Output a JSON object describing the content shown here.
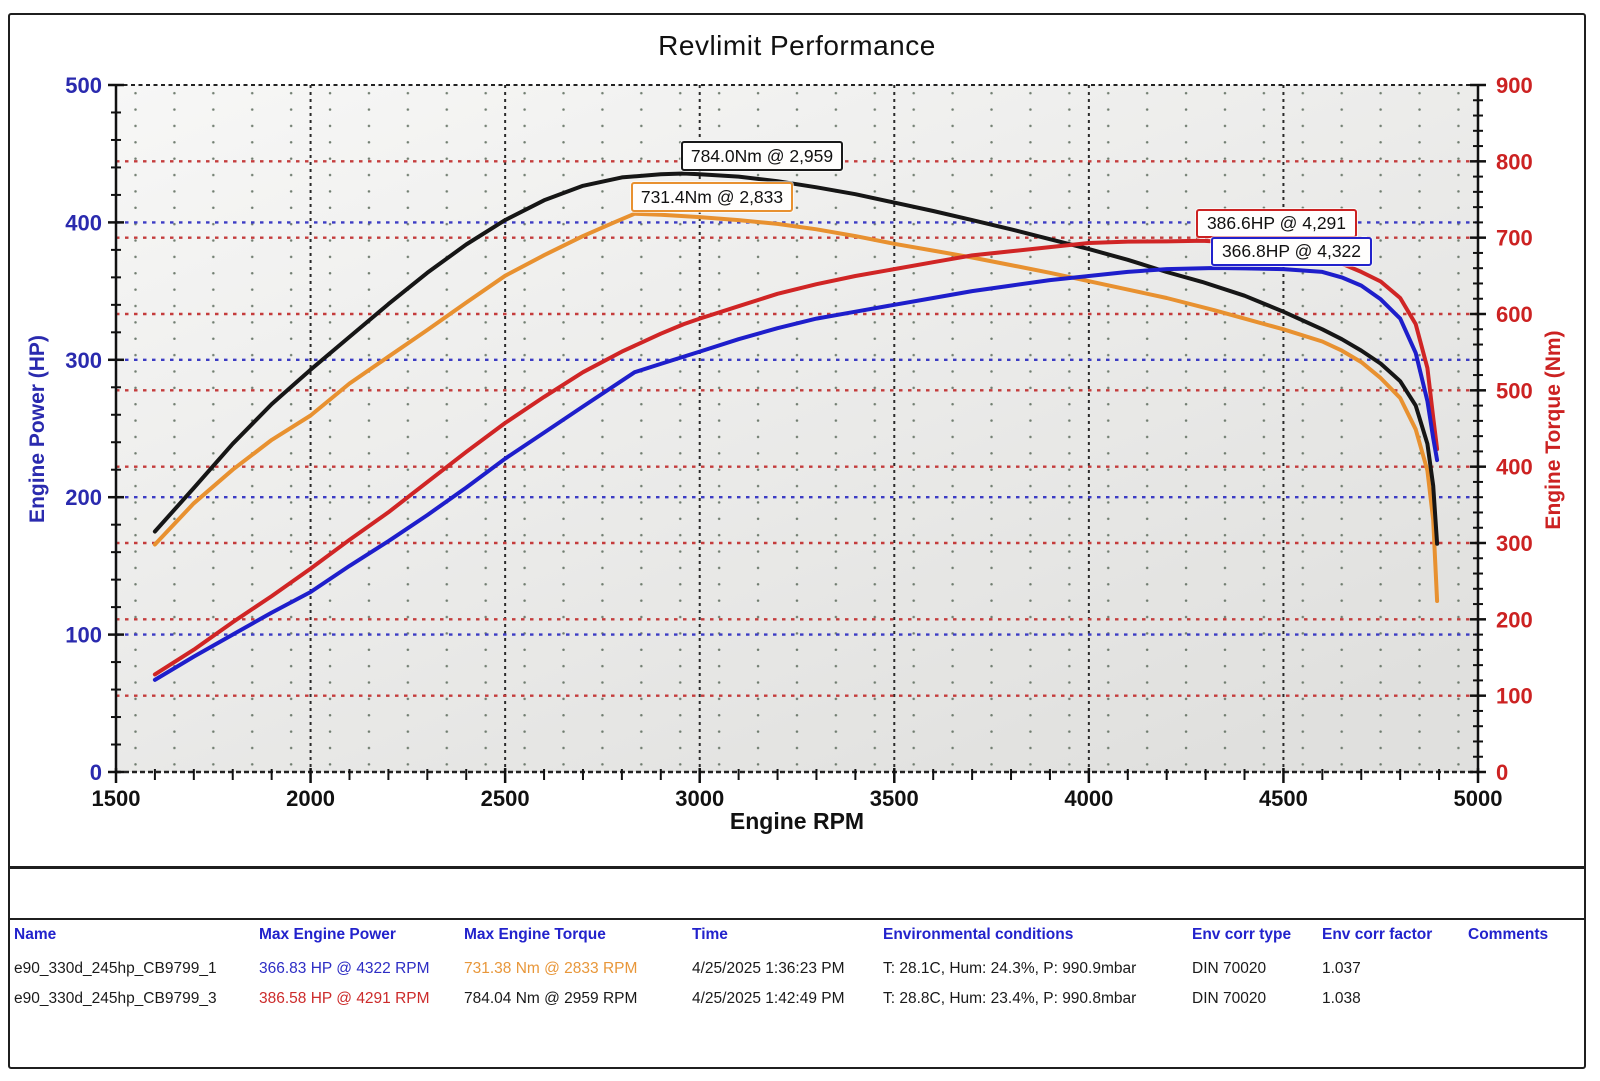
{
  "chart_data": {
    "type": "line",
    "title": "Revlimit Performance",
    "xlabel": "Engine RPM",
    "ylabel_left": "Engine Power (HP)",
    "ylabel_right": "Engine Torque (Nm)",
    "x_range": [
      1500,
      5000
    ],
    "x_ticks": [
      1500,
      2000,
      2500,
      3000,
      3500,
      4000,
      4500,
      5000
    ],
    "y_left_range": [
      0,
      500
    ],
    "y_left_ticks": [
      0,
      100,
      200,
      300,
      400,
      500
    ],
    "y_right_range": [
      0,
      900
    ],
    "y_right_ticks": [
      0,
      100,
      200,
      300,
      400,
      500,
      600,
      700,
      800,
      900
    ],
    "grid": {
      "x_major": [
        2000,
        2500,
        3000,
        3500,
        4000,
        4500
      ],
      "y_left_major": [
        100,
        200,
        300,
        400
      ],
      "y_right_major": [
        100,
        200,
        300,
        400,
        500,
        600,
        700,
        800
      ],
      "x_major_color": "#2b2b2b",
      "y_left_color": "#3c3cc4",
      "y_right_color": "#c43c3c",
      "minor_dot_color": "#5a6a5a"
    },
    "legend_position": "none",
    "series": [
      {
        "id": "torque-run1",
        "name": "e90_330d_245hp_CB9799_1 Torque",
        "axis": "right",
        "color": "#e89130",
        "points": [
          [
            1600,
            298
          ],
          [
            1700,
            352
          ],
          [
            1800,
            396
          ],
          [
            1900,
            435
          ],
          [
            2000,
            467
          ],
          [
            2100,
            509
          ],
          [
            2200,
            544
          ],
          [
            2300,
            579
          ],
          [
            2400,
            615
          ],
          [
            2500,
            650
          ],
          [
            2600,
            677
          ],
          [
            2700,
            702
          ],
          [
            2780,
            720
          ],
          [
            2833,
            731.4
          ],
          [
            2900,
            730
          ],
          [
            3000,
            727
          ],
          [
            3100,
            723
          ],
          [
            3200,
            718
          ],
          [
            3300,
            711
          ],
          [
            3400,
            702
          ],
          [
            3500,
            692
          ],
          [
            3600,
            683
          ],
          [
            3700,
            674
          ],
          [
            3800,
            664
          ],
          [
            3900,
            654
          ],
          [
            4000,
            643
          ],
          [
            4100,
            632
          ],
          [
            4200,
            621
          ],
          [
            4322,
            605
          ],
          [
            4400,
            594
          ],
          [
            4500,
            580
          ],
          [
            4600,
            564
          ],
          [
            4650,
            552
          ],
          [
            4700,
            537
          ],
          [
            4750,
            516
          ],
          [
            4800,
            490
          ],
          [
            4840,
            449
          ],
          [
            4870,
            395
          ],
          [
            4885,
            330
          ],
          [
            4895,
            224
          ]
        ]
      },
      {
        "id": "torque-run3",
        "name": "e90_330d_245hp_CB9799_3 Torque",
        "axis": "right",
        "color": "#161616",
        "points": [
          [
            1600,
            315
          ],
          [
            1700,
            372
          ],
          [
            1800,
            430
          ],
          [
            1900,
            482
          ],
          [
            2000,
            527
          ],
          [
            2100,
            570
          ],
          [
            2200,
            613
          ],
          [
            2300,
            654
          ],
          [
            2400,
            691
          ],
          [
            2500,
            723
          ],
          [
            2600,
            749
          ],
          [
            2700,
            768
          ],
          [
            2800,
            779
          ],
          [
            2900,
            783
          ],
          [
            2959,
            784
          ],
          [
            3000,
            783
          ],
          [
            3100,
            780
          ],
          [
            3200,
            774
          ],
          [
            3300,
            766
          ],
          [
            3400,
            757
          ],
          [
            3500,
            746
          ],
          [
            3600,
            735
          ],
          [
            3700,
            723
          ],
          [
            3800,
            711
          ],
          [
            3900,
            698
          ],
          [
            4000,
            685
          ],
          [
            4100,
            671
          ],
          [
            4200,
            655
          ],
          [
            4291,
            642
          ],
          [
            4400,
            624
          ],
          [
            4500,
            603
          ],
          [
            4600,
            580
          ],
          [
            4650,
            567
          ],
          [
            4700,
            552
          ],
          [
            4750,
            535
          ],
          [
            4800,
            512
          ],
          [
            4840,
            480
          ],
          [
            4870,
            430
          ],
          [
            4885,
            375
          ],
          [
            4895,
            299
          ]
        ]
      },
      {
        "id": "power-run3",
        "name": "e90_330d_245hp_CB9799_3 Power",
        "axis": "left",
        "color": "#d02525",
        "points": [
          [
            1600,
            71
          ],
          [
            1700,
            89
          ],
          [
            1800,
            109
          ],
          [
            1900,
            128
          ],
          [
            2000,
            148
          ],
          [
            2100,
            169
          ],
          [
            2200,
            189
          ],
          [
            2300,
            211
          ],
          [
            2400,
            233
          ],
          [
            2500,
            254
          ],
          [
            2600,
            273
          ],
          [
            2700,
            291
          ],
          [
            2800,
            306
          ],
          [
            2900,
            319
          ],
          [
            2959,
            326
          ],
          [
            3000,
            330
          ],
          [
            3100,
            339
          ],
          [
            3200,
            348
          ],
          [
            3300,
            355
          ],
          [
            3400,
            361
          ],
          [
            3500,
            366
          ],
          [
            3600,
            371
          ],
          [
            3700,
            376
          ],
          [
            3800,
            379
          ],
          [
            3900,
            382
          ],
          [
            4000,
            385
          ],
          [
            4100,
            386
          ],
          [
            4200,
            386.2
          ],
          [
            4291,
            386.6
          ],
          [
            4400,
            385
          ],
          [
            4500,
            381
          ],
          [
            4600,
            374
          ],
          [
            4650,
            370
          ],
          [
            4700,
            364
          ],
          [
            4750,
            357
          ],
          [
            4800,
            345
          ],
          [
            4840,
            326
          ],
          [
            4870,
            294
          ],
          [
            4885,
            258
          ],
          [
            4895,
            235
          ]
        ]
      },
      {
        "id": "power-run1",
        "name": "e90_330d_245hp_CB9799_1 Power",
        "axis": "left",
        "color": "#1e1ecb",
        "points": [
          [
            1600,
            67
          ],
          [
            1700,
            84
          ],
          [
            1800,
            100
          ],
          [
            1900,
            116
          ],
          [
            2000,
            131
          ],
          [
            2100,
            150
          ],
          [
            2200,
            168
          ],
          [
            2300,
            187
          ],
          [
            2400,
            207
          ],
          [
            2500,
            228
          ],
          [
            2600,
            247
          ],
          [
            2700,
            266
          ],
          [
            2833,
            291
          ],
          [
            2900,
            297
          ],
          [
            3000,
            306
          ],
          [
            3100,
            315
          ],
          [
            3200,
            323
          ],
          [
            3300,
            330
          ],
          [
            3400,
            335
          ],
          [
            3500,
            340
          ],
          [
            3600,
            345
          ],
          [
            3700,
            350
          ],
          [
            3800,
            354
          ],
          [
            3900,
            358
          ],
          [
            4000,
            361
          ],
          [
            4100,
            364
          ],
          [
            4200,
            366
          ],
          [
            4322,
            366.8
          ],
          [
            4400,
            366.5
          ],
          [
            4500,
            366
          ],
          [
            4600,
            364
          ],
          [
            4650,
            360
          ],
          [
            4700,
            354
          ],
          [
            4750,
            344
          ],
          [
            4800,
            330
          ],
          [
            4840,
            305
          ],
          [
            4870,
            270
          ],
          [
            4885,
            243
          ],
          [
            4895,
            227
          ]
        ]
      }
    ],
    "annotations": [
      {
        "label": "784.0Nm @ 2,959",
        "color": "#1a1a1a"
      },
      {
        "label": "731.4Nm @ 2,833",
        "color": "#e89130"
      },
      {
        "label": "386.6HP @ 4,291",
        "color": "#cc2222"
      },
      {
        "label": "366.8HP @ 4,322",
        "color": "#2222cc"
      }
    ]
  },
  "table": {
    "headers": [
      "Name",
      "Max Engine Power",
      "Max Engine Torque",
      "Time",
      "Environmental conditions",
      "Env corr type",
      "Env corr factor",
      "Comments"
    ],
    "rows": [
      {
        "name": "e90_330d_245hp_CB9799_1",
        "power": "366.83 HP @ 4322 RPM",
        "power_color": "#2d2dc4",
        "torque": "731.38 Nm @ 2833 RPM",
        "torque_color": "#e8973a",
        "time": "4/25/2025 1:36:23 PM",
        "env": "T: 28.1C, Hum: 24.3%, P: 990.9mbar",
        "env_corr_type": "DIN 70020",
        "env_corr_factor": "1.037",
        "comments": ""
      },
      {
        "name": "e90_330d_245hp_CB9799_3",
        "power": "386.58 HP @ 4291 RPM",
        "power_color": "#cc2b2b",
        "torque": "784.04 Nm @ 2959 RPM",
        "torque_color": "#1a1a1a",
        "time": "4/25/2025 1:42:49 PM",
        "env": "T: 28.8C, Hum: 23.4%, P: 990.8mbar",
        "env_corr_type": "DIN 70020",
        "env_corr_factor": "1.038",
        "comments": ""
      }
    ]
  }
}
